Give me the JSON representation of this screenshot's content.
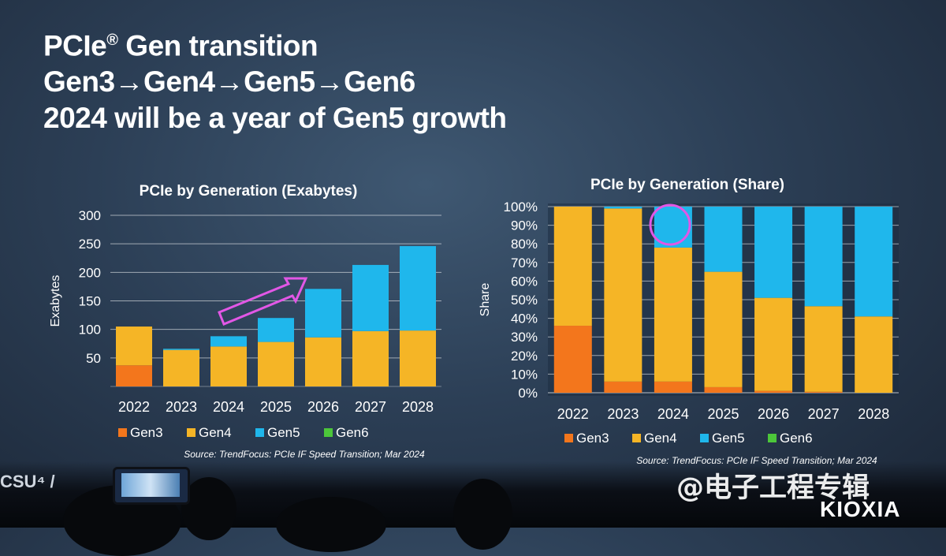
{
  "slide": {
    "title_line1": "PCIe",
    "title_line1_reg": "®",
    "title_line1_rest": " Gen transition",
    "title_line2": "Gen3→Gen4→Gen5→Gen6",
    "title_line3": "2024 will be a year of Gen5 growth"
  },
  "colors": {
    "Gen3": "#f3761c",
    "Gen4": "#f5b526",
    "Gen5": "#1fb7ec",
    "Gen6": "#4cc63a",
    "annotation": "#e257e6"
  },
  "chart_data": [
    {
      "type": "bar",
      "stacked": true,
      "title": "PCIe by Generation (Exabytes)",
      "ylabel": "Exabytes",
      "xlabel": "",
      "ylim": [
        0,
        300
      ],
      "yticks": [
        50,
        100,
        150,
        200,
        250,
        300
      ],
      "grid": true,
      "legend_position": "bottom",
      "categories": [
        "2022",
        "2023",
        "2024",
        "2025",
        "2026",
        "2027",
        "2028"
      ],
      "series": [
        {
          "name": "Gen3",
          "values": [
            37,
            0,
            0,
            0,
            0,
            0,
            0
          ]
        },
        {
          "name": "Gen4",
          "values": [
            68,
            64,
            70,
            78,
            86,
            97,
            98
          ]
        },
        {
          "name": "Gen5",
          "values": [
            0,
            2,
            18,
            42,
            85,
            116,
            148
          ]
        },
        {
          "name": "Gen6",
          "values": [
            0,
            0,
            0,
            0,
            0,
            0,
            0
          ]
        }
      ],
      "source": "Source:  TrendFocus: PCIe IF Speed Transition; Mar 2024"
    },
    {
      "type": "bar",
      "stacked": true,
      "title": "PCIe by Generation (Share)",
      "ylabel": "Share",
      "xlabel": "",
      "ylim": [
        0,
        100
      ],
      "yticks": [
        "0%",
        "10%",
        "20%",
        "30%",
        "40%",
        "50%",
        "60%",
        "70%",
        "80%",
        "90%",
        "100%"
      ],
      "grid": true,
      "legend_position": "bottom",
      "categories": [
        "2022",
        "2023",
        "2024",
        "2025",
        "2026",
        "2027",
        "2028"
      ],
      "series": [
        {
          "name": "Gen3",
          "values": [
            36,
            6,
            6,
            3,
            1,
            0.5,
            0
          ]
        },
        {
          "name": "Gen4",
          "values": [
            64,
            93,
            72,
            62,
            50,
            46,
            41
          ]
        },
        {
          "name": "Gen5",
          "values": [
            0,
            1,
            22,
            35,
            49,
            53.5,
            59
          ]
        },
        {
          "name": "Gen6",
          "values": [
            0,
            0,
            0,
            0,
            0,
            0,
            0
          ]
        }
      ],
      "source": "Source:  TrendFocus: PCIe IF Speed Transition; Mar 2024"
    }
  ],
  "overlay": {
    "watermark": "@电子工程专辑",
    "brand": "KIOXIA",
    "left_logo": "CSU⁴ /"
  }
}
